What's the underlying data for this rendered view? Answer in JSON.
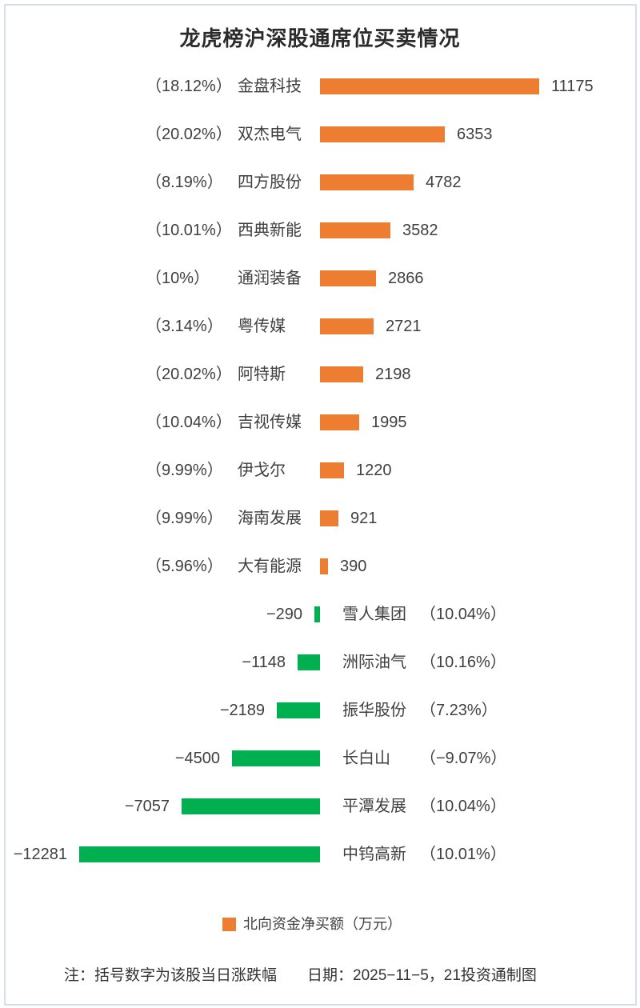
{
  "title": "龙虎榜沪深股通席位买卖情况",
  "legend": {
    "label": "北向资金净买额（万元）",
    "swatch_color": "#ED7D31"
  },
  "footer": {
    "note": "注：括号数字为该股当日涨跌幅",
    "date": "日期：2025−11−5，21投资通制图"
  },
  "colors": {
    "positive_bar": "#ED7D31",
    "negative_bar": "#00B050",
    "frame_border": "#d7dcee",
    "text": "#404040"
  },
  "chart_data": {
    "type": "bar",
    "orientation": "horizontal",
    "title": "龙虎榜沪深股通席位买卖情况",
    "series_name": "北向资金净买额（万元）",
    "unit": "万元",
    "xlim": [
      -12281,
      11175
    ],
    "grid": false,
    "legend_position": "bottom",
    "note": "括号数字为该股当日涨跌幅",
    "rows": [
      {
        "name": "金盘科技",
        "value": 11175,
        "pct_label": "（18.12%）"
      },
      {
        "name": "双杰电气",
        "value": 6353,
        "pct_label": "（20.02%）"
      },
      {
        "name": "四方股份",
        "value": 4782,
        "pct_label": "（8.19%）"
      },
      {
        "name": "西典新能",
        "value": 3582,
        "pct_label": "（10.01%）"
      },
      {
        "name": "通润装备",
        "value": 2866,
        "pct_label": "（10%）"
      },
      {
        "name": "粤传媒",
        "value": 2721,
        "pct_label": "（3.14%）"
      },
      {
        "name": "阿特斯",
        "value": 2198,
        "pct_label": "（20.02%）"
      },
      {
        "name": "吉视传媒",
        "value": 1995,
        "pct_label": "（10.04%）"
      },
      {
        "name": "伊戈尔",
        "value": 1220,
        "pct_label": "（9.99%）"
      },
      {
        "name": "海南发展",
        "value": 921,
        "pct_label": "（9.99%）"
      },
      {
        "name": "大有能源",
        "value": 390,
        "pct_label": "（5.96%）"
      },
      {
        "name": "雪人集团",
        "value": -290,
        "pct_label": "（10.04%）"
      },
      {
        "name": "洲际油气",
        "value": -1148,
        "pct_label": "（10.16%）"
      },
      {
        "name": "振华股份",
        "value": -2189,
        "pct_label": "（7.23%）"
      },
      {
        "name": "长白山",
        "value": -4500,
        "pct_label": "（−9.07%）"
      },
      {
        "name": "平潭发展",
        "value": -7057,
        "pct_label": "（10.04%）"
      },
      {
        "name": "中钨高新",
        "value": -12281,
        "pct_label": "（10.01%）"
      }
    ]
  }
}
